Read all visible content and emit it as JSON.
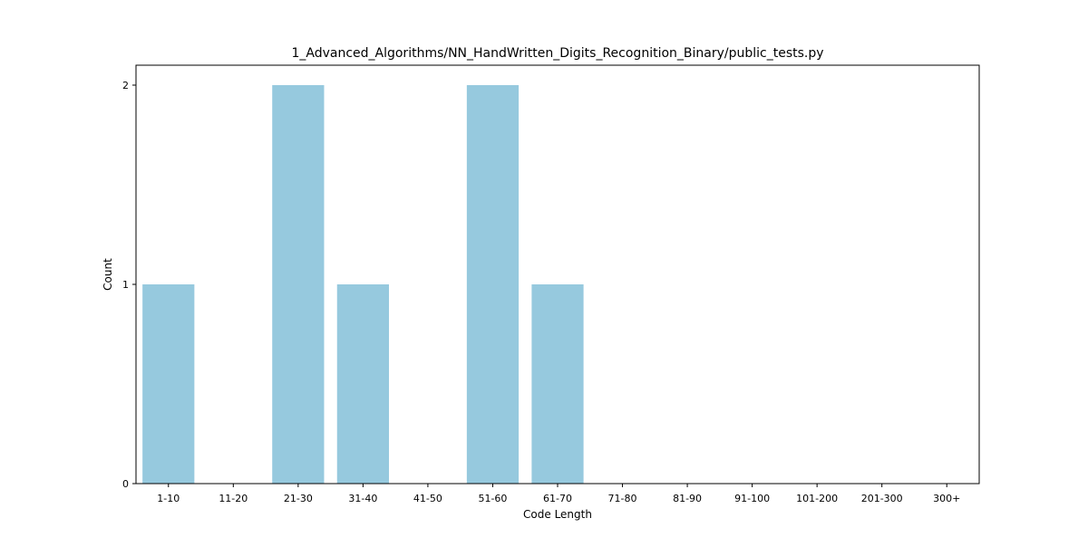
{
  "chart_data": {
    "type": "bar",
    "title": "1_Advanced_Algorithms/NN_HandWritten_Digits_Recognition_Binary/public_tests.py",
    "xlabel": "Code Length",
    "ylabel": "Count",
    "categories": [
      "1-10",
      "11-20",
      "21-30",
      "31-40",
      "41-50",
      "51-60",
      "61-70",
      "71-80",
      "81-90",
      "91-100",
      "101-200",
      "201-300",
      "300+"
    ],
    "values": [
      1,
      0,
      2,
      1,
      0,
      2,
      1,
      0,
      0,
      0,
      0,
      0,
      0
    ],
    "yticks": [
      "0",
      "1",
      "2"
    ],
    "ylim": [
      0,
      2.1
    ],
    "bar_color": "#96c9de",
    "grid": false,
    "legend": "none"
  }
}
